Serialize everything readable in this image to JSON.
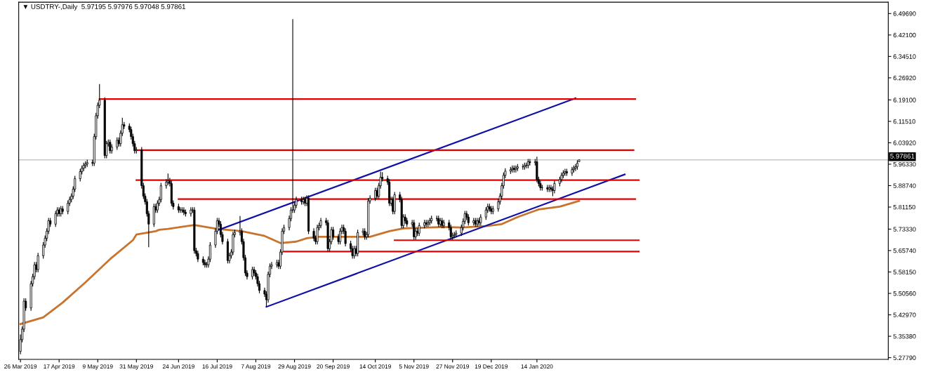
{
  "chart_data": {
    "type": "candlestick",
    "title": "▼ USDTRY-,Daily  5.97195 5.97976 5.97048 5.97861",
    "x": [
      "2019-03-26",
      "2019-03-27",
      "2019-03-28",
      "2019-03-29",
      "2019-04-01",
      "2019-04-02",
      "2019-04-03",
      "2019-04-04",
      "2019-04-05",
      "2019-04-08",
      "2019-04-09",
      "2019-04-10",
      "2019-04-11",
      "2019-04-12",
      "2019-04-15",
      "2019-04-16",
      "2019-04-17",
      "2019-04-18",
      "2019-04-19",
      "2019-04-22",
      "2019-04-23",
      "2019-04-24",
      "2019-04-25",
      "2019-04-26",
      "2019-04-29",
      "2019-04-30",
      "2019-05-01",
      "2019-05-02",
      "2019-05-03",
      "2019-05-06",
      "2019-05-07",
      "2019-05-08",
      "2019-05-09",
      "2019-05-10",
      "2019-05-13",
      "2019-05-14",
      "2019-05-15",
      "2019-05-16",
      "2019-05-17",
      "2019-05-20",
      "2019-05-21",
      "2019-05-22",
      "2019-05-23",
      "2019-05-24",
      "2019-05-27",
      "2019-05-28",
      "2019-05-29",
      "2019-05-30",
      "2019-05-31",
      "2019-06-03",
      "2019-06-04",
      "2019-06-05",
      "2019-06-06",
      "2019-06-07",
      "2019-06-10",
      "2019-06-11",
      "2019-06-12",
      "2019-06-13",
      "2019-06-14",
      "2019-06-17",
      "2019-06-18",
      "2019-06-19",
      "2019-06-20",
      "2019-06-21",
      "2019-06-24",
      "2019-06-25",
      "2019-06-26",
      "2019-06-27",
      "2019-06-28",
      "2019-07-01",
      "2019-07-02",
      "2019-07-03",
      "2019-07-04",
      "2019-07-05",
      "2019-07-08",
      "2019-07-09",
      "2019-07-10",
      "2019-07-11",
      "2019-07-12",
      "2019-07-15",
      "2019-07-16",
      "2019-07-17",
      "2019-07-18",
      "2019-07-19",
      "2019-07-22",
      "2019-07-23",
      "2019-07-24",
      "2019-07-25",
      "2019-07-26",
      "2019-07-29",
      "2019-07-30",
      "2019-07-31",
      "2019-08-01",
      "2019-08-02",
      "2019-08-05",
      "2019-08-06",
      "2019-08-07",
      "2019-08-08",
      "2019-08-09",
      "2019-08-12",
      "2019-08-13",
      "2019-08-14",
      "2019-08-15",
      "2019-08-16",
      "2019-08-19",
      "2019-08-20",
      "2019-08-21",
      "2019-08-22",
      "2019-08-23",
      "2019-08-26",
      "2019-08-27",
      "2019-08-28",
      "2019-08-29",
      "2019-08-30",
      "2019-09-02",
      "2019-09-03",
      "2019-09-04",
      "2019-09-05",
      "2019-09-06",
      "2019-09-09",
      "2019-09-10",
      "2019-09-11",
      "2019-09-12",
      "2019-09-13",
      "2019-09-16",
      "2019-09-17",
      "2019-09-18",
      "2019-09-19",
      "2019-09-20",
      "2019-09-23",
      "2019-09-24",
      "2019-09-25",
      "2019-09-26",
      "2019-09-27",
      "2019-09-30",
      "2019-10-01",
      "2019-10-02",
      "2019-10-03",
      "2019-10-04",
      "2019-10-07",
      "2019-10-08",
      "2019-10-09",
      "2019-10-10",
      "2019-10-11",
      "2019-10-14",
      "2019-10-15",
      "2019-10-16",
      "2019-10-17",
      "2019-10-18",
      "2019-10-21",
      "2019-10-22",
      "2019-10-23",
      "2019-10-24",
      "2019-10-25",
      "2019-10-28",
      "2019-10-29",
      "2019-10-30",
      "2019-10-31",
      "2019-11-01",
      "2019-11-04",
      "2019-11-05",
      "2019-11-06",
      "2019-11-07",
      "2019-11-08",
      "2019-11-11",
      "2019-11-12",
      "2019-11-13",
      "2019-11-14",
      "2019-11-15",
      "2019-11-18",
      "2019-11-19",
      "2019-11-20",
      "2019-11-21",
      "2019-11-22",
      "2019-11-25",
      "2019-11-26",
      "2019-11-27",
      "2019-11-28",
      "2019-11-29",
      "2019-12-02",
      "2019-12-03",
      "2019-12-04",
      "2019-12-05",
      "2019-12-06",
      "2019-12-09",
      "2019-12-10",
      "2019-12-11",
      "2019-12-12",
      "2019-12-13",
      "2019-12-16",
      "2019-12-17",
      "2019-12-18",
      "2019-12-19",
      "2019-12-20",
      "2019-12-23",
      "2019-12-24",
      "2019-12-25",
      "2019-12-26",
      "2019-12-27",
      "2019-12-30",
      "2019-12-31",
      "2020-01-01",
      "2020-01-02",
      "2020-01-03",
      "2020-01-06",
      "2020-01-07",
      "2020-01-08",
      "2020-01-09",
      "2020-01-10",
      "2020-01-13",
      "2020-01-14",
      "2020-01-15",
      "2020-01-16",
      "2020-01-17",
      "2020-01-20",
      "2020-01-21",
      "2020-01-22",
      "2020-01-23",
      "2020-01-24",
      "2020-01-27",
      "2020-01-28",
      "2020-01-29",
      "2020-01-30",
      "2020-01-31",
      "2020-02-03",
      "2020-02-04",
      "2020-02-05",
      "2020-02-06",
      "2020-02-07"
    ],
    "ohlc": [
      [
        5.3,
        5.36,
        5.29,
        5.342
      ],
      [
        5.342,
        5.389,
        5.332,
        5.379
      ],
      [
        5.379,
        5.488,
        5.369,
        5.478
      ],
      [
        5.478,
        5.488,
        5.444,
        5.454
      ],
      [
        5.454,
        5.55,
        5.444,
        5.54
      ],
      [
        5.54,
        5.575,
        5.53,
        5.565
      ],
      [
        5.565,
        5.617,
        5.555,
        5.607
      ],
      [
        5.607,
        5.617,
        5.58,
        5.59
      ],
      [
        5.59,
        5.649,
        5.58,
        5.639
      ],
      [
        5.639,
        5.687,
        5.629,
        5.677
      ],
      [
        5.677,
        5.711,
        5.667,
        5.701
      ],
      [
        5.701,
        5.736,
        5.691,
        5.726
      ],
      [
        5.726,
        5.773,
        5.716,
        5.763
      ],
      [
        5.763,
        5.773,
        5.741,
        5.751
      ],
      [
        5.751,
        5.798,
        5.741,
        5.788
      ],
      [
        5.788,
        5.811,
        5.778,
        5.801
      ],
      [
        5.801,
        5.811,
        5.778,
        5.788
      ],
      [
        5.788,
        5.815,
        5.778,
        5.805
      ],
      [
        5.805,
        5.815,
        5.786,
        5.796
      ],
      [
        5.796,
        5.835,
        5.786,
        5.825
      ],
      [
        5.825,
        5.848,
        5.815,
        5.838
      ],
      [
        5.838,
        5.86,
        5.828,
        5.85
      ],
      [
        5.85,
        5.885,
        5.84,
        5.875
      ],
      [
        5.875,
        5.922,
        5.865,
        5.912
      ],
      [
        5.912,
        5.947,
        5.902,
        5.937
      ],
      [
        5.937,
        5.959,
        5.927,
        5.949
      ],
      [
        5.949,
        5.969,
        5.939,
        5.959
      ],
      [
        5.959,
        5.974,
        5.949,
        5.964
      ],
      [
        5.964,
        5.979,
        5.954,
        5.969
      ],
      [
        5.969,
        5.979,
        5.957,
        5.967
      ],
      [
        5.967,
        6.071,
        5.957,
        6.061
      ],
      [
        6.061,
        6.145,
        6.051,
        6.135
      ],
      [
        6.135,
        6.182,
        6.125,
        6.172
      ],
      [
        6.172,
        6.247,
        6.162,
        6.19
      ],
      [
        6.19,
        6.2,
        5.984,
        5.994
      ],
      [
        5.994,
        6.046,
        5.984,
        6.036
      ],
      [
        6.036,
        6.051,
        6.026,
        6.041
      ],
      [
        6.041,
        6.051,
        6.001,
        6.011
      ],
      [
        6.011,
        6.034,
        6.001,
        6.024
      ],
      [
        6.024,
        6.058,
        6.014,
        6.048
      ],
      [
        6.048,
        6.058,
        6.026,
        6.036
      ],
      [
        6.036,
        6.083,
        6.026,
        6.073
      ],
      [
        6.073,
        6.128,
        6.063,
        6.103
      ],
      [
        6.103,
        6.113,
        6.088,
        6.098
      ],
      [
        6.098,
        6.108,
        6.076,
        6.086
      ],
      [
        6.086,
        6.096,
        6.051,
        6.061
      ],
      [
        6.061,
        6.071,
        6.026,
        6.036
      ],
      [
        6.036,
        6.046,
        6.001,
        6.011
      ],
      [
        6.011,
        6.024,
        6.001,
        6.014
      ],
      [
        6.014,
        6.024,
        5.877,
        5.887
      ],
      [
        5.887,
        5.897,
        5.84,
        5.85
      ],
      [
        5.85,
        5.86,
        5.82,
        5.83
      ],
      [
        5.83,
        5.84,
        5.778,
        5.788
      ],
      [
        5.788,
        5.798,
        5.669,
        5.751
      ],
      [
        5.751,
        5.823,
        5.741,
        5.813
      ],
      [
        5.813,
        5.823,
        5.791,
        5.801
      ],
      [
        5.801,
        5.835,
        5.791,
        5.825
      ],
      [
        5.825,
        5.848,
        5.815,
        5.838
      ],
      [
        5.838,
        5.897,
        5.828,
        5.887
      ],
      [
        5.887,
        5.91,
        5.877,
        5.9
      ],
      [
        5.9,
        5.93,
        5.89,
        5.905
      ],
      [
        5.905,
        5.915,
        5.885,
        5.895
      ],
      [
        5.895,
        5.905,
        5.815,
        5.825
      ],
      [
        5.825,
        5.835,
        5.803,
        5.813
      ],
      [
        5.813,
        5.823,
        5.791,
        5.801
      ],
      [
        5.801,
        5.811,
        5.791,
        5.801
      ],
      [
        5.801,
        5.811,
        5.791,
        5.801
      ],
      [
        5.801,
        5.811,
        5.783,
        5.793
      ],
      [
        5.793,
        5.803,
        5.778,
        5.788
      ],
      [
        5.788,
        5.811,
        5.778,
        5.801
      ],
      [
        5.801,
        5.811,
        5.791,
        5.801
      ],
      [
        5.801,
        5.811,
        5.647,
        5.657
      ],
      [
        5.657,
        5.667,
        5.637,
        5.647
      ],
      [
        5.647,
        5.657,
        5.617,
        5.627
      ],
      [
        5.627,
        5.637,
        5.605,
        5.615
      ],
      [
        5.615,
        5.625,
        5.597,
        5.607
      ],
      [
        5.607,
        5.617,
        5.597,
        5.607
      ],
      [
        5.607,
        5.637,
        5.597,
        5.627
      ],
      [
        5.627,
        5.687,
        5.617,
        5.677
      ],
      [
        5.677,
        5.736,
        5.667,
        5.726
      ],
      [
        5.726,
        5.773,
        5.716,
        5.763
      ],
      [
        5.763,
        5.773,
        5.741,
        5.751
      ],
      [
        5.751,
        5.761,
        5.704,
        5.714
      ],
      [
        5.714,
        5.724,
        5.679,
        5.689
      ],
      [
        5.689,
        5.699,
        5.612,
        5.622
      ],
      [
        5.622,
        5.649,
        5.612,
        5.639
      ],
      [
        5.639,
        5.662,
        5.629,
        5.652
      ],
      [
        5.652,
        5.724,
        5.642,
        5.714
      ],
      [
        5.714,
        5.731,
        5.704,
        5.721
      ],
      [
        5.721,
        5.78,
        5.711,
        5.726
      ],
      [
        5.726,
        5.736,
        5.679,
        5.689
      ],
      [
        5.689,
        5.699,
        5.622,
        5.632
      ],
      [
        5.632,
        5.642,
        5.568,
        5.578
      ],
      [
        5.578,
        5.588,
        5.555,
        5.565
      ],
      [
        5.565,
        5.6,
        5.555,
        5.59
      ],
      [
        5.59,
        5.6,
        5.568,
        5.578
      ],
      [
        5.578,
        5.588,
        5.555,
        5.565
      ],
      [
        5.565,
        5.575,
        5.53,
        5.54
      ],
      [
        5.54,
        5.55,
        5.506,
        5.516
      ],
      [
        5.516,
        5.526,
        5.493,
        5.503
      ],
      [
        5.503,
        5.513,
        5.458,
        5.483
      ],
      [
        5.483,
        5.583,
        5.473,
        5.573
      ],
      [
        5.573,
        5.612,
        5.563,
        5.602
      ],
      [
        5.602,
        5.617,
        5.592,
        5.607
      ],
      [
        5.607,
        5.625,
        5.597,
        5.615
      ],
      [
        5.615,
        5.625,
        5.592,
        5.602
      ],
      [
        5.602,
        5.662,
        5.592,
        5.652
      ],
      [
        5.652,
        5.736,
        5.642,
        5.726
      ],
      [
        5.726,
        5.749,
        5.716,
        5.739
      ],
      [
        5.739,
        5.781,
        5.729,
        5.771
      ],
      [
        5.771,
        5.811,
        5.761,
        5.801
      ],
      [
        5.801,
        6.477,
        5.791,
        5.801
      ],
      [
        5.801,
        5.828,
        5.791,
        5.818
      ],
      [
        5.818,
        5.848,
        5.808,
        5.838
      ],
      [
        5.838,
        5.848,
        5.82,
        5.83
      ],
      [
        5.83,
        5.848,
        5.82,
        5.838
      ],
      [
        5.838,
        5.848,
        5.815,
        5.825
      ],
      [
        5.825,
        5.853,
        5.815,
        5.843
      ],
      [
        5.843,
        5.853,
        5.716,
        5.726
      ],
      [
        5.726,
        5.736,
        5.691,
        5.701
      ],
      [
        5.701,
        5.711,
        5.679,
        5.689
      ],
      [
        5.689,
        5.749,
        5.679,
        5.739
      ],
      [
        5.739,
        5.756,
        5.729,
        5.746
      ],
      [
        5.746,
        5.773,
        5.736,
        5.763
      ],
      [
        5.763,
        5.773,
        5.746,
        5.756
      ],
      [
        5.756,
        5.766,
        5.654,
        5.664
      ],
      [
        5.664,
        5.699,
        5.654,
        5.689
      ],
      [
        5.689,
        5.741,
        5.679,
        5.731
      ],
      [
        5.731,
        5.741,
        5.696,
        5.706
      ],
      [
        5.706,
        5.716,
        5.679,
        5.689
      ],
      [
        5.689,
        5.736,
        5.679,
        5.726
      ],
      [
        5.726,
        5.749,
        5.716,
        5.739
      ],
      [
        5.739,
        5.749,
        5.716,
        5.726
      ],
      [
        5.726,
        5.736,
        5.672,
        5.682
      ],
      [
        5.682,
        5.692,
        5.654,
        5.664
      ],
      [
        5.664,
        5.674,
        5.629,
        5.639
      ],
      [
        5.639,
        5.674,
        5.629,
        5.664
      ],
      [
        5.664,
        5.674,
        5.637,
        5.647
      ],
      [
        5.647,
        5.731,
        5.637,
        5.721
      ],
      [
        5.721,
        5.736,
        5.711,
        5.726
      ],
      [
        5.726,
        5.736,
        5.696,
        5.706
      ],
      [
        5.706,
        5.724,
        5.696,
        5.714
      ],
      [
        5.714,
        5.843,
        5.704,
        5.833
      ],
      [
        5.833,
        5.853,
        5.823,
        5.843
      ],
      [
        5.843,
        5.88,
        5.833,
        5.87
      ],
      [
        5.87,
        5.88,
        5.84,
        5.85
      ],
      [
        5.85,
        5.897,
        5.84,
        5.887
      ],
      [
        5.887,
        5.937,
        5.877,
        5.917
      ],
      [
        5.917,
        5.935,
        5.902,
        5.912
      ],
      [
        5.912,
        5.922,
        5.89,
        5.9
      ],
      [
        5.9,
        5.91,
        5.815,
        5.825
      ],
      [
        5.825,
        5.848,
        5.815,
        5.838
      ],
      [
        5.838,
        5.848,
        5.786,
        5.796
      ],
      [
        5.796,
        5.865,
        5.786,
        5.855
      ],
      [
        5.855,
        5.865,
        5.828,
        5.838
      ],
      [
        5.838,
        5.848,
        5.736,
        5.746
      ],
      [
        5.746,
        5.786,
        5.736,
        5.776
      ],
      [
        5.776,
        5.786,
        5.753,
        5.763
      ],
      [
        5.763,
        5.773,
        5.741,
        5.751
      ],
      [
        5.751,
        5.766,
        5.741,
        5.756
      ],
      [
        5.756,
        5.766,
        5.696,
        5.706
      ],
      [
        5.706,
        5.736,
        5.696,
        5.726
      ],
      [
        5.726,
        5.736,
        5.709,
        5.719
      ],
      [
        5.719,
        5.756,
        5.709,
        5.746
      ],
      [
        5.746,
        5.766,
        5.736,
        5.756
      ],
      [
        5.756,
        5.766,
        5.741,
        5.751
      ],
      [
        5.751,
        5.766,
        5.741,
        5.756
      ],
      [
        5.756,
        5.773,
        5.746,
        5.763
      ],
      [
        5.763,
        5.781,
        5.753,
        5.771
      ],
      [
        5.771,
        5.781,
        5.761,
        5.771
      ],
      [
        5.771,
        5.781,
        5.741,
        5.751
      ],
      [
        5.751,
        5.773,
        5.741,
        5.763
      ],
      [
        5.763,
        5.773,
        5.736,
        5.746
      ],
      [
        5.746,
        5.766,
        5.736,
        5.756
      ],
      [
        5.756,
        5.766,
        5.729,
        5.739
      ],
      [
        5.739,
        5.749,
        5.696,
        5.706
      ],
      [
        5.706,
        5.721,
        5.696,
        5.711
      ],
      [
        5.711,
        5.724,
        5.701,
        5.714
      ],
      [
        5.714,
        5.729,
        5.704,
        5.719
      ],
      [
        5.719,
        5.749,
        5.709,
        5.739
      ],
      [
        5.739,
        5.771,
        5.729,
        5.761
      ],
      [
        5.761,
        5.798,
        5.751,
        5.788
      ],
      [
        5.788,
        5.798,
        5.766,
        5.776
      ],
      [
        5.776,
        5.786,
        5.746,
        5.756
      ],
      [
        5.756,
        5.773,
        5.746,
        5.763
      ],
      [
        5.763,
        5.773,
        5.741,
        5.751
      ],
      [
        5.751,
        5.773,
        5.741,
        5.763
      ],
      [
        5.763,
        5.773,
        5.746,
        5.756
      ],
      [
        5.756,
        5.786,
        5.746,
        5.776
      ],
      [
        5.776,
        5.811,
        5.766,
        5.801
      ],
      [
        5.801,
        5.823,
        5.791,
        5.813
      ],
      [
        5.813,
        5.823,
        5.795,
        5.805
      ],
      [
        5.805,
        5.815,
        5.786,
        5.796
      ],
      [
        5.796,
        5.815,
        5.786,
        5.805
      ],
      [
        5.805,
        5.84,
        5.795,
        5.83
      ],
      [
        5.83,
        5.86,
        5.82,
        5.85
      ],
      [
        5.85,
        5.897,
        5.84,
        5.887
      ],
      [
        5.887,
        5.934,
        5.877,
        5.924
      ],
      [
        5.924,
        5.949,
        5.914,
        5.939
      ],
      [
        5.939,
        5.954,
        5.929,
        5.944
      ],
      [
        5.944,
        5.959,
        5.934,
        5.949
      ],
      [
        5.949,
        5.959,
        5.934,
        5.944
      ],
      [
        5.944,
        5.959,
        5.934,
        5.949
      ],
      [
        5.949,
        5.964,
        5.939,
        5.954
      ],
      [
        5.954,
        5.964,
        5.944,
        5.954
      ],
      [
        5.954,
        5.969,
        5.944,
        5.959
      ],
      [
        5.959,
        5.969,
        5.949,
        5.959
      ],
      [
        5.959,
        5.982,
        5.949,
        5.972
      ],
      [
        5.972,
        5.982,
        5.959,
        5.969
      ],
      [
        5.969,
        5.982,
        5.959,
        5.972
      ],
      [
        5.972,
        5.99,
        5.899,
        5.909
      ],
      [
        5.909,
        5.919,
        5.885,
        5.895
      ],
      [
        5.895,
        5.905,
        5.87,
        5.88
      ],
      [
        5.88,
        5.89,
        5.87,
        5.88
      ],
      [
        5.88,
        5.89,
        5.865,
        5.875
      ],
      [
        5.875,
        5.89,
        5.865,
        5.88
      ],
      [
        5.88,
        5.89,
        5.865,
        5.875
      ],
      [
        5.875,
        5.885,
        5.85,
        5.87
      ],
      [
        5.87,
        5.905,
        5.86,
        5.895
      ],
      [
        5.895,
        5.919,
        5.885,
        5.909
      ],
      [
        5.909,
        5.934,
        5.899,
        5.924
      ],
      [
        5.924,
        5.942,
        5.914,
        5.932
      ],
      [
        5.932,
        5.947,
        5.922,
        5.937
      ],
      [
        5.937,
        5.947,
        5.922,
        5.932
      ],
      [
        5.932,
        5.954,
        5.922,
        5.944
      ],
      [
        5.944,
        5.959,
        5.934,
        5.949
      ],
      [
        5.949,
        5.964,
        5.939,
        5.954
      ],
      [
        5.954,
        5.977,
        5.944,
        5.967
      ],
      [
        5.97195,
        5.97976,
        5.97048,
        5.97861
      ]
    ],
    "series": [
      {
        "type": "line",
        "color": "#c8742e",
        "x": [
          "2019-03-26",
          "2019-04-08",
          "2019-04-19",
          "2019-05-02",
          "2019-05-16",
          "2019-05-29",
          "2019-05-31",
          "2019-06-11",
          "2019-06-13",
          "2019-06-18",
          "2019-07-03",
          "2019-07-16",
          "2019-07-30",
          "2019-08-12",
          "2019-08-21",
          "2019-08-30",
          "2019-09-05",
          "2019-09-12",
          "2019-10-02",
          "2019-10-11",
          "2019-10-22",
          "2019-10-30",
          "2019-11-22",
          "2019-12-02",
          "2019-12-16",
          "2019-12-25",
          "2020-01-03",
          "2020-01-15",
          "2020-01-27",
          "2020-02-07"
        ],
        "values": [
          5.397,
          5.421,
          5.473,
          5.545,
          5.627,
          5.694,
          5.714,
          5.726,
          5.731,
          5.734,
          5.748,
          5.734,
          5.726,
          5.709,
          5.684,
          5.689,
          5.701,
          5.706,
          5.706,
          5.706,
          5.726,
          5.736,
          5.741,
          5.739,
          5.744,
          5.751,
          5.776,
          5.803,
          5.813,
          5.833
        ]
      },
      {
        "type": "line",
        "color": "#1010a8",
        "x": [
          "2019-07-17",
          "2020-02-05"
        ],
        "values": [
          5.731,
          6.197
        ]
      },
      {
        "type": "line",
        "color": "#1010a8",
        "x": [
          "2019-08-13",
          "2020-03-04"
        ],
        "values": [
          5.458,
          5.927
        ]
      },
      {
        "type": "line",
        "color": "#e00000",
        "x": [
          "2019-05-10",
          "2020-03-10"
        ],
        "values": [
          6.194,
          6.194
        ]
      },
      {
        "type": "line",
        "color": "#e00000",
        "x": [
          "2019-05-31",
          "2020-03-09"
        ],
        "values": [
          6.013,
          6.013
        ]
      },
      {
        "type": "line",
        "color": "#e00000",
        "x": [
          "2019-05-31",
          "2020-03-12"
        ],
        "values": [
          5.907,
          5.907
        ]
      },
      {
        "type": "line",
        "color": "#e00000",
        "x": [
          "2019-06-24",
          "2020-03-10"
        ],
        "values": [
          5.84,
          5.84
        ]
      },
      {
        "type": "line",
        "color": "#e00000",
        "x": [
          "2019-10-25",
          "2020-03-12"
        ],
        "values": [
          5.694,
          5.694
        ]
      },
      {
        "type": "line",
        "color": "#e00000",
        "x": [
          "2019-08-23",
          "2020-03-12"
        ],
        "values": [
          5.654,
          5.654
        ]
      }
    ],
    "ref_lines": [
      {
        "axis": "y",
        "value": 5.97861,
        "label": "5.97861",
        "color": "#c8c8c8"
      }
    ],
    "xlim": [
      "2019-03-25",
      "2020-08-01"
    ],
    "ylim": [
      5.272,
      6.537
    ],
    "xticks": [
      {
        "value": "2019-03-26",
        "label": "26 Mar 2019"
      },
      {
        "value": "2019-04-17",
        "label": "17 Apr 2019"
      },
      {
        "value": "2019-05-09",
        "label": "9 May 2019"
      },
      {
        "value": "2019-05-31",
        "label": "31 May 2019"
      },
      {
        "value": "2019-06-24",
        "label": "24 Jun 2019"
      },
      {
        "value": "2019-07-16",
        "label": "16 Jul 2019"
      },
      {
        "value": "2019-08-07",
        "label": "7 Aug 2019"
      },
      {
        "value": "2019-08-29",
        "label": "29 Aug 2019"
      },
      {
        "value": "2019-09-20",
        "label": "20 Sep 2019"
      },
      {
        "value": "2019-10-14",
        "label": "14 Oct 2019"
      },
      {
        "value": "2019-11-05",
        "label": "5 Nov 2019"
      },
      {
        "value": "2019-11-27",
        "label": "27 Nov 2019"
      },
      {
        "value": "2019-12-19",
        "label": "19 Dec 2019"
      },
      {
        "value": "2020-01-14",
        "label": "14 Jan 2020"
      }
    ],
    "yticks": [
      {
        "value": 6.4969,
        "label": "6.49690"
      },
      {
        "value": 6.421,
        "label": "6.42100"
      },
      {
        "value": 6.3451,
        "label": "6.34510"
      },
      {
        "value": 6.2692,
        "label": "6.26920"
      },
      {
        "value": 6.191,
        "label": "6.19100"
      },
      {
        "value": 6.1151,
        "label": "6.11510"
      },
      {
        "value": 6.0392,
        "label": "6.03920"
      },
      {
        "value": 5.9633,
        "label": "5.96330"
      },
      {
        "value": 5.8874,
        "label": "5.88740"
      },
      {
        "value": 5.8115,
        "label": "5.81150"
      },
      {
        "value": 5.7333,
        "label": "5.73330"
      },
      {
        "value": 5.6574,
        "label": "5.65740"
      },
      {
        "value": 5.5815,
        "label": "5.58150"
      },
      {
        "value": 5.5056,
        "label": "5.50560"
      },
      {
        "value": 5.4297,
        "label": "5.42970"
      },
      {
        "value": 5.3538,
        "label": "5.35380"
      },
      {
        "value": 5.2779,
        "label": "5.27790"
      }
    ]
  }
}
